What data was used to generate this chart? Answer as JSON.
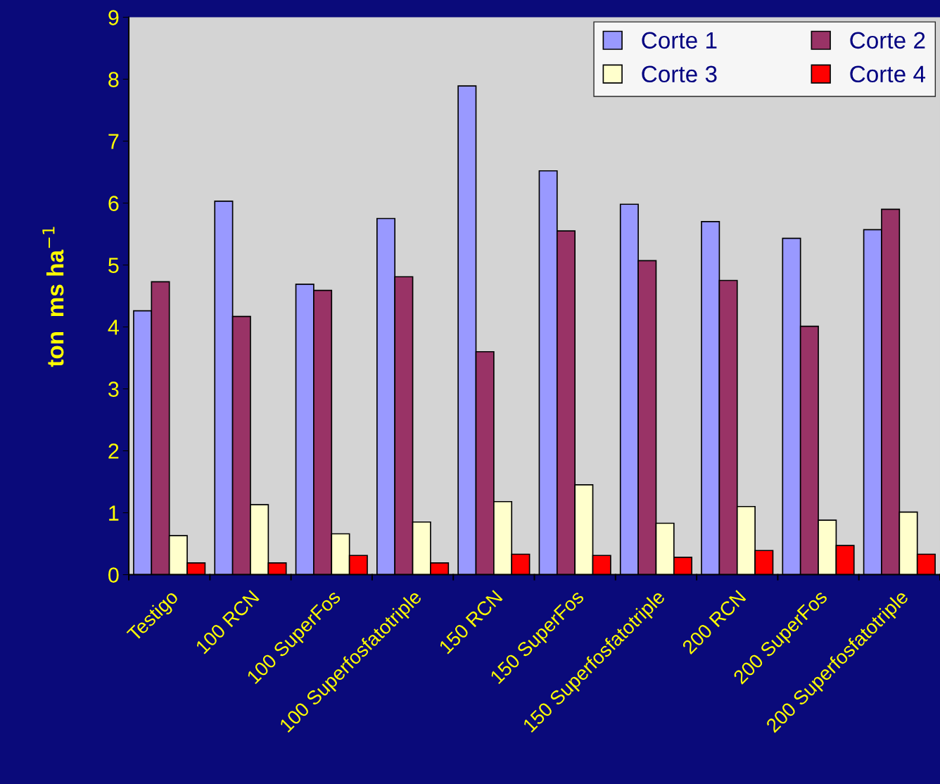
{
  "chart_data": {
    "type": "bar",
    "ylabel": "ton  ms ha$^{−1}$",
    "categories": [
      "Testigo",
      "100 RCN",
      "100 SuperFos",
      "100 Superfosfatotriple",
      "150 RCN",
      "150 SuperFos",
      "150 Superfosfatotriple",
      "200 RCN",
      "200 SuperFos",
      "200 Superfosfatotriple"
    ],
    "series": [
      {
        "name": "Corte 1",
        "color": "#9999ff",
        "values": [
          4.26,
          6.03,
          4.69,
          5.75,
          7.89,
          6.52,
          5.98,
          5.7,
          5.43,
          5.57
        ]
      },
      {
        "name": "Corte 2",
        "color": "#993366",
        "values": [
          4.73,
          4.17,
          4.59,
          4.81,
          3.6,
          5.55,
          5.07,
          4.75,
          4.01,
          5.9
        ]
      },
      {
        "name": "Corte 3",
        "color": "#ffffcc",
        "values": [
          0.63,
          1.13,
          0.66,
          0.85,
          1.18,
          1.45,
          0.83,
          1.1,
          0.88,
          1.01
        ]
      },
      {
        "name": "Corte 4",
        "color": "#ff0000",
        "values": [
          0.19,
          0.19,
          0.31,
          0.19,
          0.33,
          0.31,
          0.28,
          0.39,
          0.47,
          0.33
        ]
      }
    ],
    "ylim": [
      0,
      9
    ],
    "yticks": [
      0,
      1,
      2,
      3,
      4,
      5,
      6,
      7,
      8,
      9
    ],
    "grid": false,
    "legend": "top right"
  }
}
